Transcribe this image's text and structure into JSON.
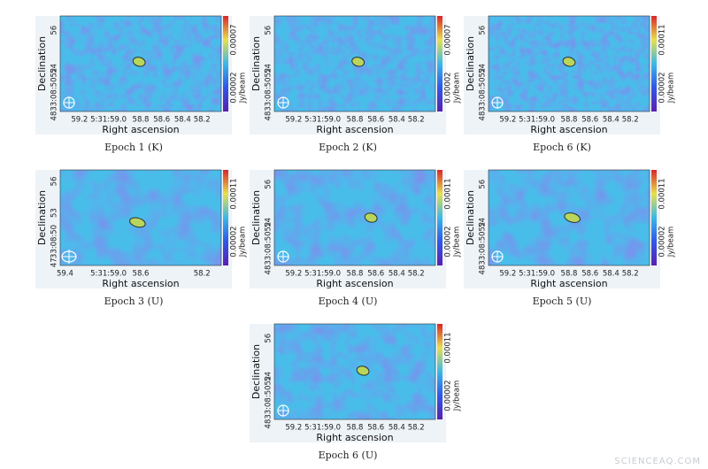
{
  "panels": [
    {
      "caption": "Epoch 1 (K)",
      "ylabel": "Declination",
      "yticks": [
        "56",
        "54",
        "4833:08:5052"
      ],
      "xlabel": "Right ascension",
      "xticks": [
        "59.2",
        "5:31:59.0",
        "58.8",
        "58.6",
        "58.4",
        "58.2"
      ],
      "cbar_ticks": [
        "0.00002",
        "0.00007"
      ],
      "cbar_label": "Jy/beam"
    },
    {
      "caption": "Epoch 2 (K)",
      "ylabel": "Declination",
      "yticks": [
        "56",
        "54",
        "4833:08:5052"
      ],
      "xlabel": "Right ascension",
      "xticks": [
        "59.2",
        "5:31:59.0",
        "58.8",
        "58.6",
        "58.4",
        "58.2"
      ],
      "cbar_ticks": [
        "0.00002",
        "0.00007"
      ],
      "cbar_label": "Jy/beam"
    },
    {
      "caption": "Epoch 6 (K)",
      "ylabel": "Declination",
      "yticks": [
        "56",
        "54",
        "4833:08:5052"
      ],
      "xlabel": "Right ascension",
      "xticks": [
        "59.2",
        "5:31:59.0",
        "58.8",
        "58.6",
        "58.4",
        "58.2"
      ],
      "cbar_ticks": [
        "0.00002",
        "0.00011"
      ],
      "cbar_label": "Jy/beam"
    },
    {
      "caption": "Epoch 3 (U)",
      "ylabel": "Declination",
      "yticks": [
        "56",
        "53",
        "33:08:50",
        "47"
      ],
      "xlabel": "Right ascension",
      "xticks": [
        "59.4",
        "5:31:59.0",
        "58.6",
        "58.2"
      ],
      "cbar_ticks": [
        "0.00002",
        "0.00011"
      ],
      "cbar_label": "Jy/beam"
    },
    {
      "caption": "Epoch 4 (U)",
      "ylabel": "Declination",
      "yticks": [
        "56",
        "54",
        "4833:08:5052"
      ],
      "xlabel": "Right ascension",
      "xticks": [
        "59.2",
        "5:31:59.0",
        "58.8",
        "58.6",
        "58.4",
        "58.2"
      ],
      "cbar_ticks": [
        "0.00002",
        "0.00011"
      ],
      "cbar_label": "Jy/beam"
    },
    {
      "caption": "Epoch 5 (U)",
      "ylabel": "Declination",
      "yticks": [
        "56",
        "54",
        "4833:08:5052"
      ],
      "xlabel": "Right ascension",
      "xticks": [
        "59.2",
        "5:31:59.0",
        "58.8",
        "58.6",
        "58.4",
        "58.2"
      ],
      "cbar_ticks": [
        "0.00002",
        "0.00011"
      ],
      "cbar_label": "Jy/beam"
    },
    {
      "caption": "Epoch 6 (U)",
      "ylabel": "Declination",
      "yticks": [
        "56",
        "54",
        "4833:08:5052"
      ],
      "xlabel": "Right ascension",
      "xticks": [
        "59.2",
        "5:31:59.0",
        "58.8",
        "58.6",
        "58.4",
        "58.2"
      ],
      "cbar_ticks": [
        "0.00002",
        "0.00011"
      ],
      "cbar_label": "Jy/beam"
    }
  ],
  "watermark": "SCIENCEAQ.COM"
}
